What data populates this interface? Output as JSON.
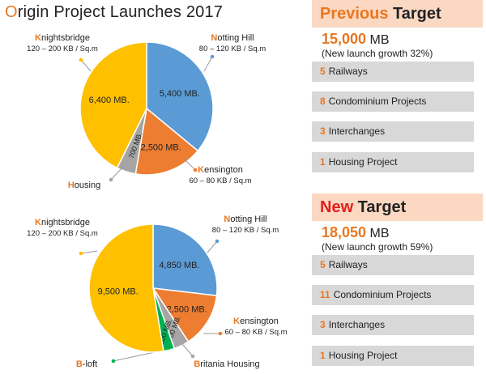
{
  "title": {
    "first": "O",
    "rest": "rigin Project Launches 2017"
  },
  "chart_data": [
    {
      "type": "pie",
      "slices": [
        {
          "label": "5,400 MB.",
          "value": 5400,
          "color": "#5b9bd5",
          "callout_initial": "N",
          "callout_rest": "otting Hill",
          "callout_sub": "80 – 120 KB / Sq.m"
        },
        {
          "label": "2,500 MB.",
          "value": 2500,
          "color": "#ed7d31",
          "callout_initial": "K",
          "callout_rest": "ensington",
          "callout_sub": "60 – 80 KB / Sq.m"
        },
        {
          "label": "700 MB.",
          "value": 700,
          "color": "#a5a5a5",
          "callout_initial": "H",
          "callout_rest": "ousing",
          "callout_sub": ""
        },
        {
          "label": "6,400 MB.",
          "value": 6400,
          "color": "#ffc000",
          "callout_initial": "K",
          "callout_rest": "nightsbridge",
          "callout_sub": "120 – 200 KB / Sq.m"
        }
      ]
    },
    {
      "type": "pie",
      "slices": [
        {
          "label": "4,850 MB.",
          "value": 4850,
          "color": "#5b9bd5",
          "callout_initial": "N",
          "callout_rest": "otting Hill",
          "callout_sub": "80 – 120 KB / Sq.m"
        },
        {
          "label": "2,500 MB.",
          "value": 2500,
          "color": "#ed7d31",
          "callout_initial": "K",
          "callout_rest": "ensington",
          "callout_sub": "60 – 80 KB / Sq.m"
        },
        {
          "label": "700 MB.",
          "value": 700,
          "color": "#a5a5a5",
          "callout_initial": "B",
          "callout_rest": "ritania Housing",
          "callout_sub": ""
        },
        {
          "label": "500 MB.",
          "value": 500,
          "color": "#00b050",
          "callout_initial": "B",
          "callout_rest": "-loft",
          "callout_sub": ""
        },
        {
          "label": "9,500 MB.",
          "value": 9500,
          "color": "#ffc000",
          "callout_initial": "K",
          "callout_rest": "nightsbridge",
          "callout_sub": "120 – 200 KB / Sq.m"
        }
      ]
    }
  ],
  "previous": {
    "head_hl": "Previous",
    "head_rest": " Target",
    "amount": "15,000",
    "unit": " MB",
    "growth": "(New launch growth 32%)",
    "items": [
      {
        "num": "5",
        "label": "Railways"
      },
      {
        "num": "8",
        "label": "Condominium Projects"
      },
      {
        "num": "3",
        "label": "Interchanges"
      },
      {
        "num": "1",
        "label": "Housing Project"
      }
    ]
  },
  "new": {
    "head_hl": "New",
    "head_rest": " Target",
    "amount": "18,050",
    "unit": " MB",
    "growth": "(New launch growth 59%)",
    "items": [
      {
        "num": "5",
        "label": "Railways"
      },
      {
        "num": "11",
        "label": "Condominium Projects"
      },
      {
        "num": "3",
        "label": "Interchanges"
      },
      {
        "num": "1",
        "label": "Housing Project"
      }
    ]
  }
}
